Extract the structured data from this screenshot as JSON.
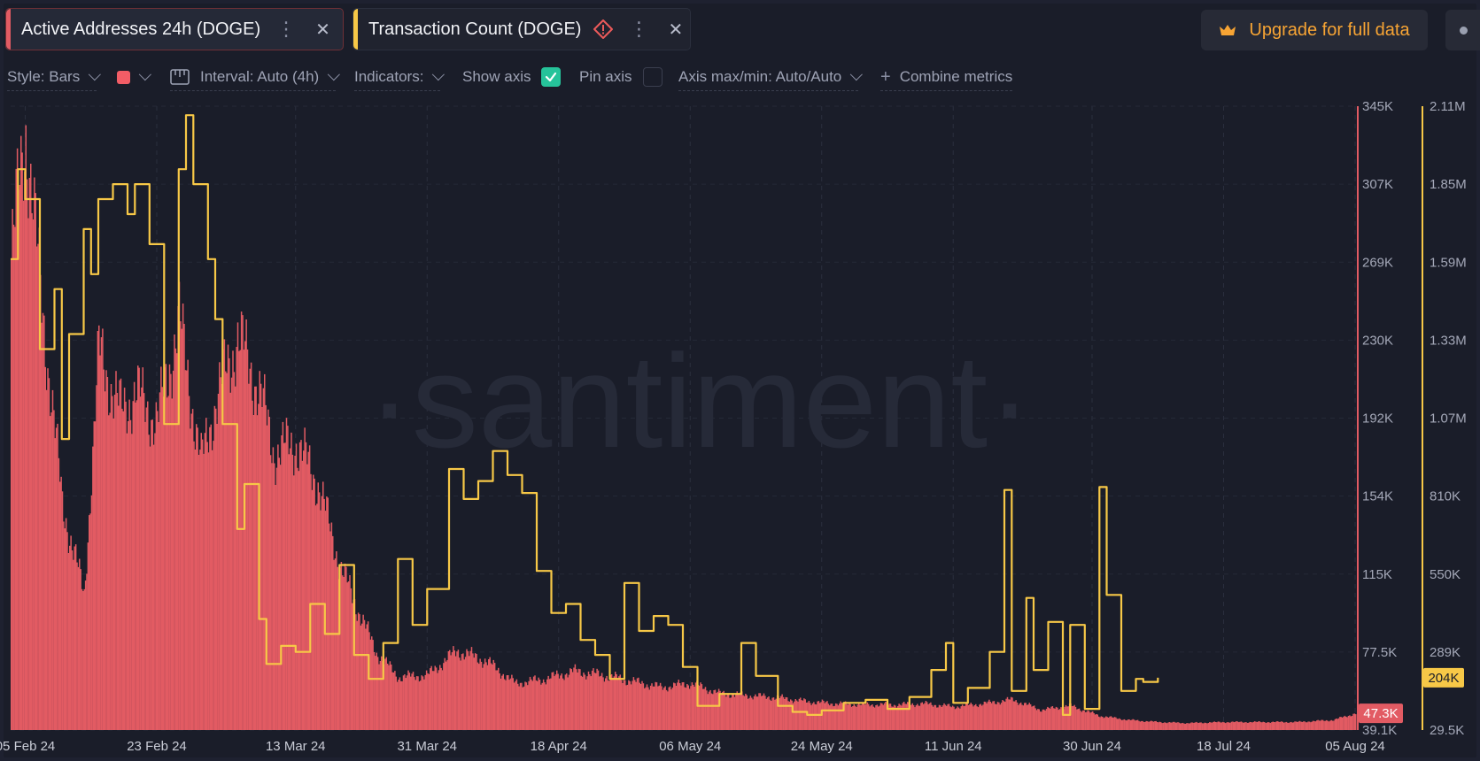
{
  "tabs": [
    {
      "label": "Active Addresses 24h (DOGE)",
      "color": "#e25b63"
    },
    {
      "label": "Transaction Count (DOGE)",
      "color": "#f7c847",
      "warning": true
    }
  ],
  "upgrade": {
    "label": "Upgrade for full data",
    "icon": "crown-icon"
  },
  "toolbar": {
    "style_label": "Style: Bars",
    "color_swatch": "#f25d66",
    "interval_label": "Interval: Auto (4h)",
    "indicators_label": "Indicators:",
    "show_axis_label": "Show axis",
    "show_axis_checked": true,
    "pin_axis_label": "Pin axis",
    "pin_axis_checked": false,
    "axis_maxmin_label": "Axis max/min: Auto/Auto",
    "combine_label": "Combine metrics"
  },
  "watermark": "·santiment·",
  "chart_data": {
    "type": "bar",
    "x_tick_labels": [
      "05 Feb 24",
      "23 Feb 24",
      "13 Mar 24",
      "31 Mar 24",
      "18 Apr 24",
      "06 May 24",
      "24 May 24",
      "11 Jun 24",
      "30 Jun 24",
      "18 Jul 24",
      "05 Aug 24"
    ],
    "x_range": [
      "2024-02-03",
      "2024-08-05"
    ],
    "grid": true,
    "series": [
      {
        "name": "Active Addresses 24h (DOGE)",
        "render": "bars",
        "color": "#e25b63",
        "axis": "left",
        "axis_ticks": [
          "345K",
          "307K",
          "269K",
          "230K",
          "192K",
          "154K",
          "115K",
          "77.5K",
          "39.1K"
        ],
        "ylim": [
          39100,
          345000
        ],
        "current_value_label": "47.3K",
        "date_keys": [
          "2024-02-03",
          "2024-02-05",
          "2024-02-07",
          "2024-02-10",
          "2024-02-13",
          "2024-02-15",
          "2024-02-18",
          "2024-02-20",
          "2024-02-23",
          "2024-02-26",
          "2024-02-29",
          "2024-03-02",
          "2024-03-05",
          "2024-03-08",
          "2024-03-10",
          "2024-03-13",
          "2024-03-16",
          "2024-03-19",
          "2024-03-21",
          "2024-03-24",
          "2024-03-27",
          "2024-03-31",
          "2024-04-04",
          "2024-04-08",
          "2024-04-12",
          "2024-04-16",
          "2024-04-20",
          "2024-04-24",
          "2024-04-28",
          "2024-05-02",
          "2024-05-06",
          "2024-05-10",
          "2024-05-14",
          "2024-05-18",
          "2024-05-22",
          "2024-05-26",
          "2024-05-30",
          "2024-06-03",
          "2024-06-07",
          "2024-06-11",
          "2024-06-15",
          "2024-06-19",
          "2024-06-23",
          "2024-06-27",
          "2024-07-01",
          "2024-07-05",
          "2024-07-09",
          "2024-07-13",
          "2024-07-18",
          "2024-07-23",
          "2024-07-28",
          "2024-08-02",
          "2024-08-05"
        ],
        "values": [
          270000,
          335000,
          255000,
          150000,
          105000,
          225000,
          195000,
          205000,
          190000,
          240000,
          170000,
          200000,
          232000,
          205000,
          175000,
          180000,
          160000,
          120000,
          102000,
          77000,
          65000,
          66000,
          78000,
          73000,
          62000,
          64000,
          68000,
          66000,
          63000,
          60000,
          62000,
          57000,
          56000,
          55000,
          53000,
          52000,
          51500,
          51500,
          52000,
          50500,
          52000,
          54000,
          49000,
          51000,
          46000,
          44000,
          43000,
          42500,
          43000,
          43000,
          43000,
          44000,
          47300
        ]
      },
      {
        "name": "Transaction Count (DOGE)",
        "render": "line",
        "color": "#f7c847",
        "axis": "right",
        "axis_ticks": [
          "2.11M",
          "1.85M",
          "1.59M",
          "1.33M",
          "1.07M",
          "810K",
          "550K",
          "289K",
          "29.5K"
        ],
        "ylim": [
          29500,
          2110000
        ],
        "current_value_label": "204K",
        "date_keys": [
          "2024-02-03",
          "2024-02-04",
          "2024-02-05",
          "2024-02-07",
          "2024-02-09",
          "2024-02-10",
          "2024-02-11",
          "2024-02-13",
          "2024-02-14",
          "2024-02-15",
          "2024-02-17",
          "2024-02-19",
          "2024-02-20",
          "2024-02-22",
          "2024-02-24",
          "2024-02-26",
          "2024-02-27",
          "2024-02-28",
          "2024-03-01",
          "2024-03-02",
          "2024-03-03",
          "2024-03-05",
          "2024-03-06",
          "2024-03-08",
          "2024-03-09",
          "2024-03-11",
          "2024-03-13",
          "2024-03-15",
          "2024-03-17",
          "2024-03-19",
          "2024-03-21",
          "2024-03-23",
          "2024-03-25",
          "2024-03-27",
          "2024-03-29",
          "2024-03-31",
          "2024-04-03",
          "2024-04-05",
          "2024-04-07",
          "2024-04-09",
          "2024-04-11",
          "2024-04-13",
          "2024-04-15",
          "2024-04-17",
          "2024-04-19",
          "2024-04-21",
          "2024-04-23",
          "2024-04-25",
          "2024-04-27",
          "2024-04-29",
          "2024-05-01",
          "2024-05-03",
          "2024-05-05",
          "2024-05-07",
          "2024-05-10",
          "2024-05-13",
          "2024-05-15",
          "2024-05-18",
          "2024-05-20",
          "2024-05-22",
          "2024-05-24",
          "2024-05-27",
          "2024-05-30",
          "2024-06-02",
          "2024-06-05",
          "2024-06-08",
          "2024-06-10",
          "2024-06-11",
          "2024-06-13",
          "2024-06-16",
          "2024-06-18",
          "2024-06-19",
          "2024-06-21",
          "2024-06-22",
          "2024-06-24",
          "2024-06-26",
          "2024-06-27",
          "2024-06-29",
          "2024-07-01",
          "2024-07-02",
          "2024-07-04",
          "2024-07-06",
          "2024-07-07",
          "2024-07-09"
        ],
        "values": [
          1600000,
          1900000,
          1800000,
          1300000,
          1500000,
          1000000,
          1350000,
          1700000,
          1550000,
          1800000,
          1850000,
          1750000,
          1850000,
          1650000,
          1050000,
          1900000,
          2080000,
          1850000,
          1600000,
          1400000,
          1050000,
          700000,
          850000,
          400000,
          250000,
          310000,
          290000,
          450000,
          350000,
          580000,
          280000,
          200000,
          320000,
          600000,
          380000,
          500000,
          900000,
          800000,
          860000,
          960000,
          880000,
          820000,
          560000,
          420000,
          450000,
          330000,
          280000,
          200000,
          520000,
          360000,
          410000,
          380000,
          240000,
          110000,
          150000,
          320000,
          210000,
          110000,
          90000,
          80000,
          95000,
          120000,
          130000,
          100000,
          140000,
          230000,
          320000,
          120000,
          170000,
          290000,
          830000,
          160000,
          470000,
          230000,
          390000,
          80000,
          380000,
          100000,
          840000,
          480000,
          160000,
          200000,
          190000,
          204000
        ]
      }
    ]
  }
}
